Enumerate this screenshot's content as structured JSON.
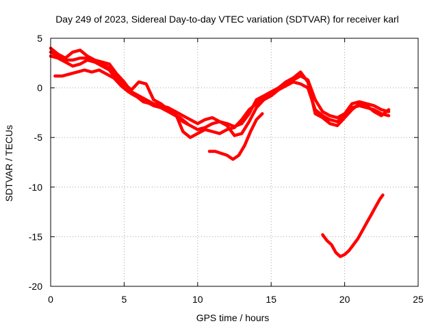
{
  "chart_data": {
    "type": "line",
    "title": "Day 249 of 2023, Sidereal Day-to-day VTEC variation (SDTVAR) for receiver karl",
    "xlabel": "GPS time / hours",
    "ylabel": "SDTVAR / TECUs",
    "xlim": [
      0,
      25
    ],
    "ylim": [
      -20,
      5
    ],
    "x_ticks": [
      0,
      5,
      10,
      15,
      20,
      25
    ],
    "y_ticks": [
      5,
      0,
      -5,
      -10,
      -15,
      -20
    ],
    "grid": true,
    "color": "#ff0000",
    "series": [
      {
        "name": "trace-1",
        "x": [
          0.0,
          0.5,
          1.0,
          1.5,
          2.0,
          2.5,
          3.0,
          3.5,
          4.0,
          4.5,
          5.0,
          5.5,
          6.0,
          6.5,
          7.0,
          7.5,
          8.0,
          8.5,
          9.0,
          9.5,
          10.0,
          10.5,
          11.0,
          11.5,
          12.0,
          12.5,
          13.0,
          13.5,
          14.0,
          14.5,
          15.0,
          15.5,
          16.0,
          16.5,
          17.0,
          17.5,
          18.0,
          18.5,
          19.0,
          19.5,
          20.0,
          20.5,
          21.0,
          21.5,
          22.0,
          22.5,
          23.0
        ],
        "y": [
          4.0,
          3.4,
          3.0,
          3.6,
          3.8,
          3.2,
          2.8,
          2.6,
          2.4,
          1.4,
          0.6,
          -0.4,
          -0.8,
          -1.2,
          -1.6,
          -1.8,
          -2.0,
          -2.4,
          -2.8,
          -3.2,
          -3.6,
          -3.2,
          -3.0,
          -3.4,
          -3.6,
          -3.9,
          -3.6,
          -2.6,
          -1.2,
          -0.8,
          -0.4,
          0.0,
          0.4,
          0.8,
          1.2,
          0.8,
          -1.2,
          -2.4,
          -2.8,
          -3.0,
          -2.6,
          -1.6,
          -1.4,
          -1.6,
          -1.8,
          -2.2,
          -2.4
        ]
      },
      {
        "name": "trace-2",
        "x": [
          0.0,
          0.5,
          1.0,
          1.5,
          2.0,
          2.5,
          3.0,
          3.5,
          4.0,
          4.5,
          5.0,
          5.5,
          6.0,
          6.5,
          7.0,
          7.5,
          8.0,
          8.5,
          9.0,
          9.5,
          10.0,
          10.5,
          11.0,
          11.5,
          12.0,
          12.5,
          13.0,
          13.5,
          14.0,
          14.5,
          15.0,
          15.5,
          16.0,
          16.5,
          17.0,
          17.5,
          18.0,
          18.5,
          19.0,
          19.5,
          20.0,
          20.5,
          21.0,
          21.5,
          22.0,
          22.5,
          23.0
        ],
        "y": [
          3.2,
          3.0,
          2.6,
          2.2,
          2.4,
          2.8,
          2.6,
          2.2,
          1.8,
          0.8,
          0.0,
          -0.6,
          -1.0,
          -1.4,
          -1.8,
          -2.0,
          -2.4,
          -2.8,
          -3.4,
          -3.8,
          -4.2,
          -4.0,
          -3.6,
          -3.4,
          -3.8,
          -4.8,
          -4.6,
          -3.4,
          -2.0,
          -1.2,
          -0.8,
          -0.2,
          0.2,
          0.6,
          0.4,
          0.0,
          -2.2,
          -2.8,
          -3.2,
          -3.4,
          -2.8,
          -2.0,
          -1.8,
          -2.0,
          -2.2,
          -2.6,
          -2.8
        ]
      },
      {
        "name": "trace-3",
        "x": [
          0.0,
          0.5,
          1.0,
          1.5,
          2.0,
          2.5,
          3.0,
          3.5,
          4.0,
          4.5,
          5.0,
          5.5,
          6.0,
          6.5,
          7.0,
          7.5,
          8.0,
          8.5,
          9.0,
          9.5,
          10.0,
          10.5,
          11.0,
          11.5,
          12.0,
          12.5,
          13.0,
          13.5,
          14.0,
          14.5,
          15.0,
          15.5,
          16.0,
          16.5,
          17.0,
          17.5,
          18.0,
          18.5,
          19.0,
          19.5,
          20.0,
          20.5,
          21.0,
          21.5,
          22.0,
          22.5,
          23.0
        ],
        "y": [
          3.6,
          3.2,
          2.8,
          2.8,
          3.0,
          3.0,
          2.6,
          2.4,
          2.0,
          1.2,
          0.4,
          -0.2,
          0.6,
          0.4,
          -1.2,
          -1.6,
          -2.2,
          -2.6,
          -4.4,
          -5.0,
          -4.6,
          -4.2,
          -4.4,
          -4.6,
          -4.2,
          -4.0,
          -3.2,
          -2.2,
          -1.6,
          -1.0,
          -0.6,
          0.0,
          0.6,
          1.0,
          1.6,
          0.6,
          -2.6,
          -3.0,
          -3.6,
          -3.8,
          -3.0,
          -2.2,
          -1.6,
          -1.8,
          -2.4,
          -2.8,
          -2.2
        ]
      },
      {
        "name": "trace-4",
        "x": [
          0.3,
          0.8,
          1.3,
          1.8,
          2.3,
          2.8,
          3.3,
          3.8,
          4.3,
          4.8,
          5.3,
          5.8,
          6.3,
          6.8,
          7.3,
          7.8,
          8.3,
          8.8,
          9.3
        ],
        "y": [
          1.2,
          1.2,
          1.4,
          1.6,
          1.8,
          1.6,
          1.8,
          1.4,
          1.0,
          0.2,
          -0.4,
          -0.8,
          -1.4,
          -1.6,
          -1.8,
          -2.2,
          -2.6,
          -3.0,
          -3.6
        ]
      },
      {
        "name": "trace-5",
        "x": [
          10.8,
          11.2,
          11.6,
          12.0,
          12.4,
          12.8,
          13.2,
          13.6,
          14.0,
          14.4
        ],
        "y": [
          -6.4,
          -6.4,
          -6.6,
          -6.8,
          -7.2,
          -6.8,
          -5.8,
          -4.4,
          -3.2,
          -2.6
        ]
      },
      {
        "name": "trace-6",
        "x": [
          18.5,
          18.8,
          19.1,
          19.4,
          19.7,
          20.0,
          20.3,
          20.6,
          20.9,
          21.2,
          21.5,
          21.8,
          22.1,
          22.4,
          22.6
        ],
        "y": [
          -14.8,
          -15.4,
          -15.8,
          -16.6,
          -17.0,
          -16.8,
          -16.4,
          -15.8,
          -15.2,
          -14.4,
          -13.6,
          -12.8,
          -12.0,
          -11.2,
          -10.8
        ]
      }
    ]
  }
}
